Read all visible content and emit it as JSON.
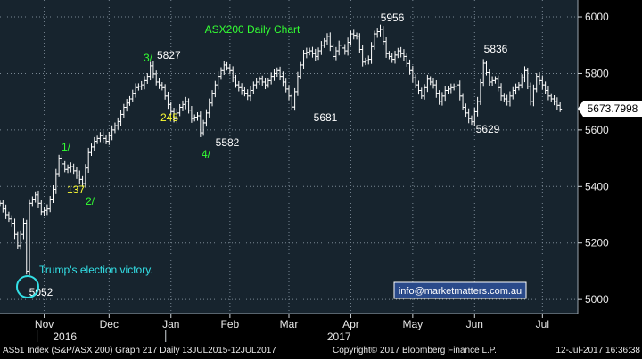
{
  "chart_data": {
    "type": "line",
    "style": "ohlc-bars",
    "title": "ASX200 Daily Chart",
    "ylim": [
      4950,
      6060
    ],
    "y_ticks": [
      5000,
      5200,
      5400,
      5600,
      5800,
      6000
    ],
    "y_tick_labels": [
      "5000",
      "5200",
      "5400",
      "5600",
      "5800",
      "6000"
    ],
    "x_months": [
      {
        "label": "Nov",
        "x_index": 15
      },
      {
        "label": "Dec",
        "x_index": 37
      },
      {
        "label": "Jan",
        "x_index": 58
      },
      {
        "label": "Feb",
        "x_index": 78
      },
      {
        "label": "Mar",
        "x_index": 98
      },
      {
        "label": "Apr",
        "x_index": 119
      },
      {
        "label": "May",
        "x_index": 140
      },
      {
        "label": "Jun",
        "x_index": 161
      },
      {
        "label": "Jul",
        "x_index": 184
      }
    ],
    "x_years": [
      {
        "label": "2016",
        "x_index": 22
      },
      {
        "label": "2017",
        "x_index": 115
      }
    ],
    "last_value": "5673.7998",
    "series": [
      {
        "color": "#ffffff",
        "points": [
          [
            0,
            5340
          ],
          [
            2,
            5300
          ],
          [
            4,
            5270
          ],
          [
            6,
            5190
          ],
          [
            8,
            5270
          ],
          [
            9,
            5100
          ],
          [
            10,
            5340
          ],
          [
            12,
            5370
          ],
          [
            14,
            5310
          ],
          [
            16,
            5320
          ],
          [
            18,
            5390
          ],
          [
            20,
            5500
          ],
          [
            22,
            5460
          ],
          [
            24,
            5470
          ],
          [
            26,
            5440
          ],
          [
            28,
            5410
          ],
          [
            30,
            5520
          ],
          [
            32,
            5560
          ],
          [
            34,
            5580
          ],
          [
            36,
            5560
          ],
          [
            38,
            5600
          ],
          [
            40,
            5630
          ],
          [
            42,
            5680
          ],
          [
            44,
            5710
          ],
          [
            46,
            5750
          ],
          [
            48,
            5760
          ],
          [
            50,
            5790
          ],
          [
            51,
            5827
          ],
          [
            53,
            5770
          ],
          [
            55,
            5750
          ],
          [
            57,
            5690
          ],
          [
            59,
            5640
          ],
          [
            61,
            5680
          ],
          [
            63,
            5700
          ],
          [
            65,
            5640
          ],
          [
            67,
            5650
          ],
          [
            68,
            5590
          ],
          [
            70,
            5660
          ],
          [
            72,
            5730
          ],
          [
            74,
            5790
          ],
          [
            76,
            5830
          ],
          [
            78,
            5810
          ],
          [
            80,
            5760
          ],
          [
            82,
            5740
          ],
          [
            84,
            5720
          ],
          [
            86,
            5760
          ],
          [
            88,
            5780
          ],
          [
            90,
            5760
          ],
          [
            92,
            5790
          ],
          [
            94,
            5810
          ],
          [
            96,
            5770
          ],
          [
            98,
            5720
          ],
          [
            99,
            5681
          ],
          [
            101,
            5790
          ],
          [
            103,
            5870
          ],
          [
            105,
            5880
          ],
          [
            107,
            5860
          ],
          [
            109,
            5900
          ],
          [
            111,
            5930
          ],
          [
            113,
            5860
          ],
          [
            115,
            5900
          ],
          [
            117,
            5880
          ],
          [
            119,
            5940
          ],
          [
            121,
            5930
          ],
          [
            123,
            5840
          ],
          [
            125,
            5850
          ],
          [
            127,
            5940
          ],
          [
            129,
            5956
          ],
          [
            131,
            5870
          ],
          [
            133,
            5850
          ],
          [
            135,
            5880
          ],
          [
            137,
            5860
          ],
          [
            139,
            5810
          ],
          [
            141,
            5760
          ],
          [
            143,
            5720
          ],
          [
            145,
            5780
          ],
          [
            147,
            5760
          ],
          [
            149,
            5700
          ],
          [
            151,
            5740
          ],
          [
            153,
            5750
          ],
          [
            155,
            5760
          ],
          [
            157,
            5680
          ],
          [
            159,
            5640
          ],
          [
            160,
            5629
          ],
          [
            162,
            5700
          ],
          [
            164,
            5836
          ],
          [
            166,
            5770
          ],
          [
            168,
            5780
          ],
          [
            170,
            5720
          ],
          [
            172,
            5700
          ],
          [
            174,
            5740
          ],
          [
            176,
            5760
          ],
          [
            178,
            5810
          ],
          [
            180,
            5700
          ],
          [
            182,
            5790
          ],
          [
            184,
            5760
          ],
          [
            186,
            5720
          ],
          [
            188,
            5700
          ],
          [
            190,
            5673.8
          ]
        ]
      }
    ],
    "annotations": [
      {
        "text": "5827",
        "color": "#ffffff"
      },
      {
        "text": "5956",
        "color": "#ffffff"
      },
      {
        "text": "5836",
        "color": "#ffffff"
      },
      {
        "text": "5681",
        "color": "#ffffff"
      },
      {
        "text": "5582",
        "color": "#ffffff"
      },
      {
        "text": "5629",
        "color": "#ffffff"
      },
      {
        "text": "5052",
        "color": "#ffffff"
      },
      {
        "text": "3/",
        "color": "#33ff33"
      },
      {
        "text": "1/",
        "color": "#33ff33"
      },
      {
        "text": "2/",
        "color": "#33ff33"
      },
      {
        "text": "4/",
        "color": "#33ff33"
      },
      {
        "text": "245",
        "color": "#ffff33"
      },
      {
        "text": "137",
        "color": "#ffff33"
      },
      {
        "text": "Trump's election victory.",
        "color": "#33e0e6"
      },
      {
        "text": "info@marketmatters.com.au",
        "color": "#ffffff"
      }
    ]
  },
  "footer": {
    "left": "AS51 Index (S&P/ASX 200) Graph 217  Daily 13JUL2015-12JUL2017",
    "center": "Copyright© 2017 Bloomberg Finance L.P.",
    "right": "12-Jul-2017 16:36:38"
  },
  "colors": {
    "background": "#000000",
    "plot_background": "#17242e",
    "bars": "#ffffff",
    "grid": "#7a8894",
    "wave_label": "#33ff33",
    "retrace_label": "#ffff33",
    "election_note": "#33e0e6"
  }
}
